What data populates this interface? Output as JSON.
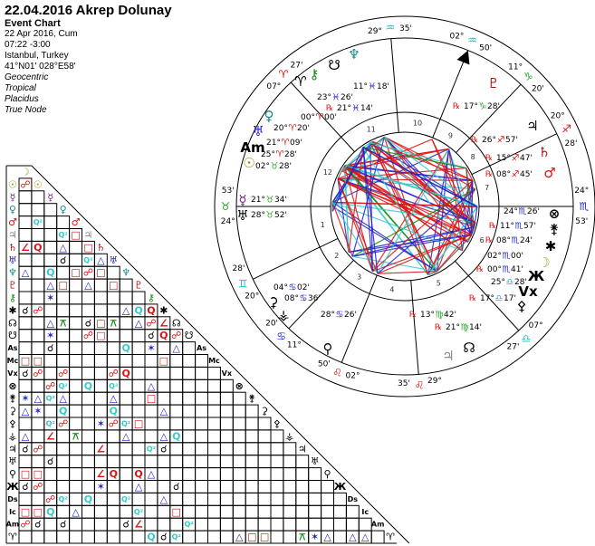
{
  "header": {
    "title": "22.04.2016 Akrep Dolunay",
    "chart_type": "Event Chart",
    "date": "22 Apr 2016, Cum",
    "time": "07:22  -3:00",
    "place": "Istanbul, Turkey",
    "coords": "41°N01' 028°E58'",
    "options": [
      "Geocentric",
      "Tropical",
      "Placidus",
      "True Node"
    ]
  },
  "colors": {
    "fire": "#dd1111",
    "earth": "#22aa22",
    "air": "#22bbbb",
    "water": "#2222cc",
    "red": "#dd1111",
    "blue": "#2222cc",
    "cyan": "#33cccc",
    "green": "#118811"
  },
  "signs": {
    "aries": {
      "glyph": "♈",
      "element": "fire"
    },
    "taurus": {
      "glyph": "♉",
      "element": "earth"
    },
    "gemini": {
      "glyph": "♊",
      "element": "air"
    },
    "cancer": {
      "glyph": "♋",
      "element": "water"
    },
    "leo": {
      "glyph": "♌",
      "element": "fire"
    },
    "virgo": {
      "glyph": "♍",
      "element": "earth"
    },
    "libra": {
      "glyph": "♎",
      "element": "air"
    },
    "scorpio": {
      "glyph": "♏",
      "element": "water"
    },
    "sagittarius": {
      "glyph": "♐",
      "element": "fire"
    },
    "capricorn": {
      "glyph": "♑",
      "element": "earth"
    },
    "aquarius": {
      "glyph": "♒",
      "element": "air"
    },
    "pisces": {
      "glyph": "♓",
      "element": "water"
    }
  },
  "cusps": [
    {
      "house": 1,
      "deg": "24°",
      "sign": "taurus",
      "min": "53'"
    },
    {
      "house": 2,
      "deg": "20°",
      "sign": "gemini",
      "min": "28'"
    },
    {
      "house": 3,
      "deg": "11°",
      "sign": "cancer",
      "min": "20'"
    },
    {
      "house": 4,
      "deg": "02°",
      "sign": "leo",
      "min": "50'"
    },
    {
      "house": 5,
      "deg": "29°",
      "sign": "leo",
      "min": "35'"
    },
    {
      "house": 6,
      "deg": "07°",
      "sign": "libra",
      "min": "27'"
    },
    {
      "house": 7,
      "deg": "24°",
      "sign": "scorpio",
      "min": "53'"
    },
    {
      "house": 8,
      "deg": "20°",
      "sign": "sagittarius",
      "min": "28'"
    },
    {
      "house": 9,
      "deg": "11°",
      "sign": "capricorn",
      "min": "20'"
    },
    {
      "house": 10,
      "deg": "02°",
      "sign": "aquarius",
      "min": "50'"
    },
    {
      "house": 11,
      "deg": "29°",
      "sign": "aquarius",
      "min": "35'"
    },
    {
      "house": 12,
      "deg": "07°",
      "sign": "aries",
      "min": "27'"
    }
  ],
  "house_numbers": [
    "1",
    "2",
    "3",
    "4",
    "5",
    "6",
    "7",
    "8",
    "9",
    "10",
    "11",
    "12"
  ],
  "bodies": [
    {
      "name": "moon",
      "glyph": "☽",
      "color": "#b0a020",
      "deg": "02°",
      "sign": "scorpio",
      "min": "00'",
      "retro": false
    },
    {
      "name": "sun",
      "glyph": "☉",
      "color": "#a09020",
      "deg": "02°",
      "sign": "taurus",
      "min": "28'",
      "retro": false
    },
    {
      "name": "mercury",
      "glyph": "☿",
      "color": "#7a1a8a",
      "deg": "21°",
      "sign": "taurus",
      "min": "34'",
      "retro": false
    },
    {
      "name": "venus",
      "glyph": "♀",
      "color": "#1a8a8a",
      "deg": "20°",
      "sign": "aries",
      "min": "20'",
      "retro": false
    },
    {
      "name": "mars",
      "glyph": "♂",
      "color": "#dd1111",
      "deg": "08°",
      "sign": "sagittarius",
      "min": "45'",
      "retro": true
    },
    {
      "name": "jupiter",
      "glyph": "♃",
      "color": "#888888",
      "deg": "13°",
      "sign": "virgo",
      "min": "42'",
      "retro": true
    },
    {
      "name": "saturn",
      "glyph": "♄",
      "color": "#aa1111",
      "deg": "15°",
      "sign": "sagittarius",
      "min": "47'",
      "retro": true
    },
    {
      "name": "uranus",
      "glyph": "♅",
      "color": "#2222cc",
      "deg": "21°",
      "sign": "aries",
      "min": "09'",
      "retro": false
    },
    {
      "name": "neptune",
      "glyph": "♆",
      "color": "#1a8a8a",
      "deg": "11°",
      "sign": "pisces",
      "min": "18'",
      "retro": false
    },
    {
      "name": "pluto",
      "glyph": "♇",
      "color": "#aa1111",
      "deg": "17°",
      "sign": "capricorn",
      "min": "28'",
      "retro": true
    },
    {
      "name": "chiron",
      "glyph": "⚷",
      "color": "#118811",
      "deg": "23°",
      "sign": "pisces",
      "min": "26'",
      "retro": false
    },
    {
      "name": "asteroid-star",
      "glyph": "✱",
      "color": "#000000",
      "deg": "08°",
      "sign": "scorpio",
      "min": "24'",
      "retro": true
    },
    {
      "name": "north-node",
      "glyph": "☊",
      "color": "#000000",
      "deg": "21°",
      "sign": "virgo",
      "min": "14'",
      "retro": true
    },
    {
      "name": "lilith",
      "glyph": "☋",
      "color": "#000000",
      "deg": "21°",
      "sign": "pisces",
      "min": "14'",
      "retro": true
    },
    {
      "name": "ascendant",
      "glyph": "As",
      "color": "#000000",
      "deg": "24°",
      "sign": "taurus",
      "min": "53'",
      "retro": false
    },
    {
      "name": "midheaven",
      "glyph": "Mc",
      "color": "#000000",
      "deg": "02°",
      "sign": "aquarius",
      "min": "50'",
      "retro": false
    },
    {
      "name": "vertex",
      "glyph": "Vx",
      "color": "#000000",
      "deg": "25°",
      "sign": "libra",
      "min": "28'",
      "retro": false
    },
    {
      "name": "part-of-fortune",
      "glyph": "⊗",
      "color": "#000000",
      "deg": "24°",
      "sign": "scorpio",
      "min": "26'",
      "retro": false
    },
    {
      "name": "juno",
      "glyph": "⚵",
      "color": "#000000",
      "deg": "11°",
      "sign": "scorpio",
      "min": "57'",
      "retro": true
    },
    {
      "name": "ceres",
      "glyph": "⚳",
      "color": "#000000",
      "deg": "04°",
      "sign": "cancer",
      "min": "02'",
      "retro": false
    },
    {
      "name": "pallas",
      "glyph": "⚴",
      "color": "#000000",
      "deg": "17°",
      "sign": "libra",
      "min": "17'",
      "retro": true
    },
    {
      "name": "vesta",
      "glyph": "⚶",
      "color": "#000000",
      "deg": "08°",
      "sign": "cancer",
      "min": "36'",
      "retro": false
    },
    {
      "name": "asteroid-bird",
      "glyph": "♃",
      "color": "#000000",
      "deg": "26°",
      "sign": "sagittarius",
      "min": "57'",
      "retro": true
    },
    {
      "name": "asteroid-yen",
      "glyph": "♅",
      "color": "#000000",
      "deg": "28°",
      "sign": "taurus",
      "min": "52'",
      "retro": false
    },
    {
      "name": "asteroid-a",
      "glyph": "⚲",
      "color": "#000000",
      "deg": "28°",
      "sign": "cancer",
      "min": "26'",
      "retro": false
    },
    {
      "name": "asteroid-x",
      "glyph": "Ж",
      "color": "#000000",
      "deg": "00°",
      "sign": "scorpio",
      "min": "41'",
      "retro": true
    },
    {
      "name": "descendant",
      "glyph": "Ds",
      "color": "#000000",
      "deg": "24°",
      "sign": "scorpio",
      "min": "53'",
      "retro": false
    },
    {
      "name": "imum-coeli",
      "glyph": "Ic",
      "color": "#000000",
      "deg": "02°",
      "sign": "leo",
      "min": "50'",
      "retro": false
    },
    {
      "name": "antivertex",
      "glyph": "Am",
      "color": "#000000",
      "deg": "25°",
      "sign": "aries",
      "min": "28'",
      "retro": false
    },
    {
      "name": "aries-point",
      "glyph": "♈",
      "color": "#000000",
      "deg": "00°",
      "sign": "aries",
      "min": "00'",
      "retro": false
    }
  ],
  "retro_label": "℞",
  "aspect_types": {
    "con": {
      "glyph": "☌",
      "color": "#000000"
    },
    "opp": {
      "glyph": "☍",
      "color": "#dd1111"
    },
    "sqr": {
      "glyph": "□",
      "color": "#dd1111"
    },
    "tri": {
      "glyph": "△",
      "color": "#2222cc"
    },
    "sex": {
      "glyph": "✶",
      "color": "#2222cc"
    },
    "qcx": {
      "glyph": "⚻",
      "color": "#118811"
    },
    "ssq": {
      "glyph": "∠",
      "color": "#dd1111"
    },
    "sesq": {
      "glyph": "Q",
      "color": "#dd1111"
    },
    "qui": {
      "glyph": "Q",
      "color": "#33cccc"
    },
    "biq": {
      "glyph": "Q²",
      "color": "#33cccc"
    }
  },
  "aspects": [
    [
      1,
      0,
      "opp"
    ],
    [
      4,
      1,
      "biq"
    ],
    [
      5,
      3,
      "biq"
    ],
    [
      5,
      4,
      "sqr"
    ],
    [
      6,
      0,
      "ssq"
    ],
    [
      6,
      1,
      "sesq"
    ],
    [
      6,
      3,
      "tri"
    ],
    [
      6,
      5,
      "sqr"
    ],
    [
      7,
      3,
      "con"
    ],
    [
      7,
      5,
      "biq"
    ],
    [
      7,
      6,
      "tri"
    ],
    [
      8,
      0,
      "tri"
    ],
    [
      8,
      2,
      "qui"
    ],
    [
      8,
      4,
      "sqr"
    ],
    [
      8,
      5,
      "opp"
    ],
    [
      8,
      6,
      "sqr"
    ],
    [
      9,
      2,
      "tri"
    ],
    [
      9,
      3,
      "sqr"
    ],
    [
      9,
      5,
      "tri"
    ],
    [
      9,
      7,
      "sqr"
    ],
    [
      10,
      2,
      "sex"
    ],
    [
      11,
      0,
      "con"
    ],
    [
      11,
      1,
      "opp"
    ],
    [
      11,
      8,
      "tri"
    ],
    [
      11,
      9,
      "qui"
    ],
    [
      11,
      10,
      "sesq"
    ],
    [
      12,
      2,
      "tri"
    ],
    [
      12,
      3,
      "qcx"
    ],
    [
      12,
      5,
      "con"
    ],
    [
      12,
      6,
      "sqr"
    ],
    [
      12,
      7,
      "qcx"
    ],
    [
      12,
      9,
      "tri"
    ],
    [
      12,
      10,
      "opp"
    ],
    [
      12,
      11,
      "ssq"
    ],
    [
      13,
      2,
      "sex"
    ],
    [
      13,
      5,
      "opp"
    ],
    [
      13,
      6,
      "sqr"
    ],
    [
      13,
      10,
      "con"
    ],
    [
      13,
      11,
      "sesq"
    ],
    [
      13,
      12,
      "opp"
    ],
    [
      14,
      2,
      "con"
    ],
    [
      14,
      8,
      "qui"
    ],
    [
      14,
      10,
      "sex"
    ],
    [
      14,
      12,
      "tri"
    ],
    [
      15,
      0,
      "sqr"
    ],
    [
      15,
      1,
      "sqr"
    ],
    [
      15,
      11,
      "sqr"
    ],
    [
      16,
      0,
      "con"
    ],
    [
      16,
      1,
      "opp"
    ],
    [
      16,
      3,
      "opp"
    ],
    [
      16,
      7,
      "opp"
    ],
    [
      16,
      8,
      "sesq"
    ],
    [
      17,
      2,
      "opp"
    ],
    [
      17,
      3,
      "biq"
    ],
    [
      17,
      5,
      "qui"
    ],
    [
      17,
      7,
      "biq"
    ],
    [
      17,
      10,
      "tri"
    ],
    [
      18,
      0,
      "sex"
    ],
    [
      18,
      1,
      "tri"
    ],
    [
      18,
      2,
      "biq"
    ],
    [
      18,
      3,
      "tri"
    ],
    [
      18,
      7,
      "tri"
    ],
    [
      18,
      10,
      "sqr"
    ],
    [
      19,
      0,
      "tri"
    ],
    [
      19,
      1,
      "sex"
    ],
    [
      19,
      3,
      "qui"
    ],
    [
      19,
      7,
      "qui"
    ],
    [
      19,
      11,
      "tri"
    ],
    [
      20,
      2,
      "biq"
    ],
    [
      20,
      3,
      "opp"
    ],
    [
      20,
      6,
      "sex"
    ],
    [
      20,
      7,
      "opp"
    ],
    [
      20,
      8,
      "biq"
    ],
    [
      20,
      9,
      "sqr"
    ],
    [
      21,
      0,
      "tri"
    ],
    [
      21,
      2,
      "ssq"
    ],
    [
      21,
      4,
      "qcx"
    ],
    [
      21,
      8,
      "tri"
    ],
    [
      21,
      11,
      "tri"
    ],
    [
      21,
      12,
      "qui"
    ],
    [
      22,
      0,
      "con"
    ],
    [
      22,
      1,
      "opp"
    ],
    [
      22,
      6,
      "ssq"
    ],
    [
      22,
      10,
      "biq"
    ],
    [
      22,
      11,
      "con"
    ],
    [
      23,
      2,
      "con"
    ],
    [
      24,
      0,
      "sqr"
    ],
    [
      24,
      1,
      "sqr"
    ],
    [
      24,
      6,
      "ssq"
    ],
    [
      24,
      7,
      "sesq"
    ],
    [
      24,
      9,
      "sesq"
    ],
    [
      24,
      10,
      "tri"
    ],
    [
      25,
      0,
      "con"
    ],
    [
      25,
      1,
      "opp"
    ],
    [
      25,
      6,
      "sex"
    ],
    [
      25,
      9,
      "tri"
    ],
    [
      25,
      12,
      "con"
    ],
    [
      26,
      2,
      "opp"
    ],
    [
      26,
      3,
      "biq"
    ],
    [
      26,
      5,
      "qui"
    ],
    [
      26,
      8,
      "biq"
    ],
    [
      26,
      11,
      "tri"
    ],
    [
      27,
      0,
      "sqr"
    ],
    [
      27,
      1,
      "sqr"
    ],
    [
      27,
      2,
      "qui"
    ],
    [
      27,
      4,
      "tri"
    ],
    [
      27,
      9,
      "biq"
    ],
    [
      27,
      12,
      "sqr"
    ],
    [
      28,
      0,
      "opp"
    ],
    [
      28,
      1,
      "con"
    ],
    [
      28,
      3,
      "con"
    ],
    [
      28,
      8,
      "con"
    ],
    [
      28,
      9,
      "ssq"
    ],
    [
      28,
      13,
      "biq"
    ],
    [
      29,
      10,
      "qui"
    ],
    [
      29,
      11,
      "con"
    ],
    [
      29,
      12,
      "biq"
    ],
    [
      29,
      17,
      "tri"
    ],
    [
      29,
      18,
      "sqr"
    ],
    [
      29,
      19,
      "sqr"
    ],
    [
      29,
      22,
      "qcx"
    ],
    [
      29,
      23,
      "sex"
    ],
    [
      29,
      24,
      "tri"
    ],
    [
      29,
      26,
      "tri"
    ],
    [
      29,
      27,
      "tri"
    ]
  ]
}
